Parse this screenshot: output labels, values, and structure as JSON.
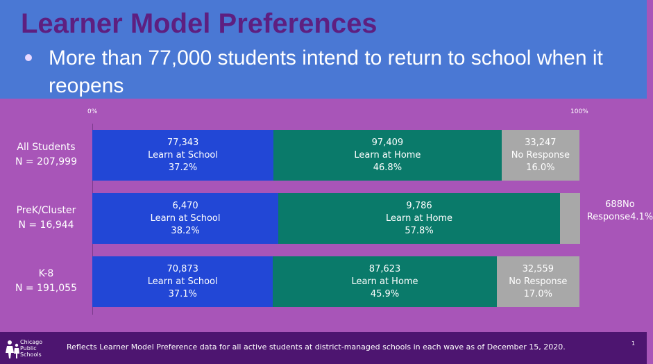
{
  "header": {
    "title": "Learner Model Preferences",
    "bullet": "More than 77,000 students intend to return to school when it reopens"
  },
  "scale": {
    "min_label": "0%",
    "max_label": "100%"
  },
  "footer": {
    "note": "Reflects Learner Model Preference data for all active students at district-managed schools in each wave as of December 15, 2020.",
    "page_number": "1",
    "logo_lines": [
      "Chicago",
      "Public",
      "Schools"
    ]
  },
  "colors": {
    "learn_at_school": "#2247d6",
    "learn_at_home": "#0a7a6a",
    "no_response": "#a8a8a8",
    "header_bg": "#4a78d4",
    "panel_bg": "#a855b8",
    "title": "#5e1f80",
    "footer_bg": "#4d1570"
  },
  "chart_data": {
    "type": "bar",
    "orientation": "horizontal",
    "stacked": true,
    "xlim": [
      0,
      100
    ],
    "categories": [
      {
        "line1": "All Students",
        "line2": "N = 207,999"
      },
      {
        "line1": "PreK/Cluster",
        "line2": "N = 16,944"
      },
      {
        "line1": "K-8",
        "line2": "N = 191,055"
      }
    ],
    "series": [
      {
        "name": "Learn at School",
        "counts": [
          "77,343",
          "6,470",
          "70,873"
        ],
        "values": [
          37.2,
          38.2,
          37.1
        ],
        "percent_labels": [
          "37.2%",
          "38.2%",
          "37.1%"
        ]
      },
      {
        "name": "Learn at Home",
        "counts": [
          "97,409",
          "9,786",
          "87,623"
        ],
        "values": [
          46.8,
          57.8,
          45.9
        ],
        "percent_labels": [
          "46.8%",
          "57.8%",
          "45.9%"
        ]
      },
      {
        "name": "No Response",
        "counts": [
          "33,247",
          "688",
          "32,559"
        ],
        "values": [
          16.0,
          4.1,
          17.0
        ],
        "percent_labels": [
          "16.0%",
          "4.1%",
          "17.0%"
        ]
      }
    ]
  }
}
